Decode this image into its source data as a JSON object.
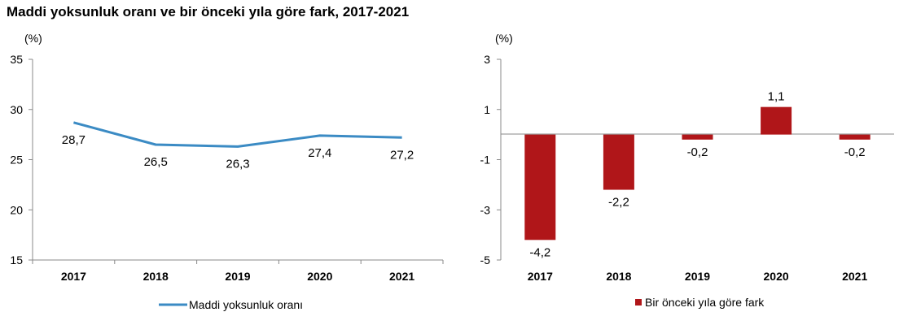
{
  "title": "Maddi yoksunluk oranı ve bir önceki yıla göre fark, 2017-2021",
  "chart_data": [
    {
      "type": "line",
      "categories": [
        "2017",
        "2018",
        "2019",
        "2020",
        "2021"
      ],
      "series": [
        {
          "name": "Maddi yoksunluk oranı",
          "values": [
            28.7,
            26.5,
            26.3,
            27.4,
            27.2
          ],
          "color": "#3b8bc4"
        }
      ],
      "data_labels": [
        "28,7",
        "26,5",
        "26,3",
        "27,4",
        "27,2"
      ],
      "yunit": "(%)",
      "ylim": [
        15,
        35
      ],
      "yticks": [
        15,
        20,
        25,
        30,
        35
      ],
      "ytick_labels": [
        "15",
        "20",
        "25",
        "30",
        "35"
      ],
      "legend": "bottom",
      "grid": false
    },
    {
      "type": "bar",
      "categories": [
        "2017",
        "2018",
        "2019",
        "2020",
        "2021"
      ],
      "series": [
        {
          "name": "Bir önceki yıla göre fark",
          "values": [
            -4.2,
            -2.2,
            -0.2,
            1.1,
            -0.2
          ],
          "color": "#b01619"
        }
      ],
      "data_labels": [
        "-4,2",
        "-2,2",
        "-0,2",
        "1,1",
        "-0,2"
      ],
      "yunit": "(%)",
      "ylim": [
        -5,
        3
      ],
      "yticks": [
        -5,
        -3,
        -1,
        1,
        3
      ],
      "ytick_labels": [
        "-5",
        "-3",
        "-1",
        "1",
        "3"
      ],
      "legend": "bottom",
      "grid": false
    }
  ]
}
